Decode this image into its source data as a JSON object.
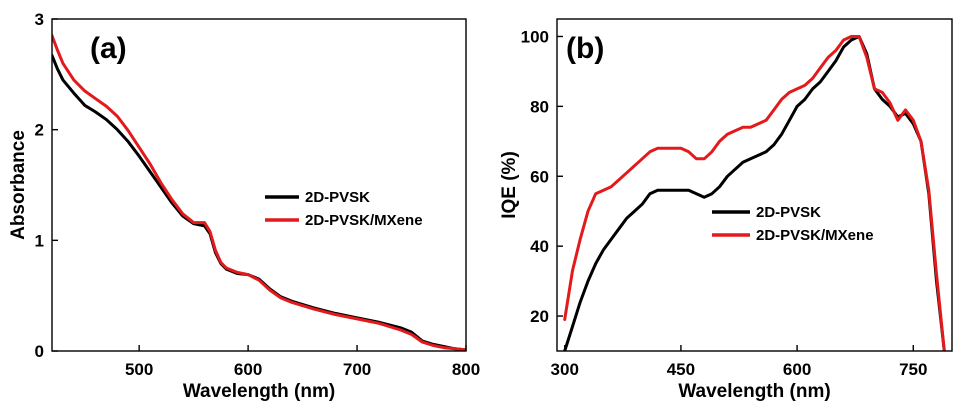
{
  "chart_data": [
    {
      "type": "line",
      "panel_label": "(a)",
      "xlabel": "Wavelength (nm)",
      "ylabel": "Absorbance",
      "xlim": [
        420,
        800
      ],
      "ylim": [
        0,
        3
      ],
      "xticks": [
        500,
        600,
        700,
        800
      ],
      "yticks": [
        0,
        1,
        2,
        3
      ],
      "legend_position": "center-right",
      "series": [
        {
          "name": "2D-PVSK",
          "color": "#000000",
          "x": [
            420,
            425,
            430,
            440,
            450,
            460,
            470,
            480,
            490,
            500,
            510,
            520,
            530,
            540,
            550,
            560,
            565,
            570,
            575,
            580,
            590,
            600,
            610,
            620,
            630,
            640,
            660,
            680,
            700,
            720,
            740,
            750,
            760,
            770,
            780,
            790,
            800
          ],
          "y": [
            2.67,
            2.55,
            2.45,
            2.33,
            2.22,
            2.16,
            2.09,
            2.0,
            1.89,
            1.76,
            1.62,
            1.48,
            1.34,
            1.22,
            1.15,
            1.13,
            1.06,
            0.89,
            0.79,
            0.74,
            0.7,
            0.69,
            0.65,
            0.56,
            0.49,
            0.45,
            0.39,
            0.34,
            0.3,
            0.26,
            0.21,
            0.17,
            0.09,
            0.06,
            0.04,
            0.02,
            0.01
          ]
        },
        {
          "name": "2D-PVSK/MXene",
          "color": "#e31a1c",
          "x": [
            420,
            425,
            430,
            440,
            450,
            460,
            470,
            480,
            490,
            500,
            510,
            520,
            530,
            540,
            550,
            560,
            565,
            570,
            575,
            580,
            590,
            600,
            610,
            620,
            630,
            640,
            660,
            680,
            700,
            720,
            740,
            750,
            760,
            770,
            780,
            790,
            800
          ],
          "y": [
            2.85,
            2.72,
            2.6,
            2.45,
            2.35,
            2.28,
            2.21,
            2.12,
            1.99,
            1.84,
            1.69,
            1.52,
            1.37,
            1.24,
            1.16,
            1.16,
            1.08,
            0.91,
            0.8,
            0.75,
            0.71,
            0.69,
            0.64,
            0.55,
            0.48,
            0.44,
            0.38,
            0.33,
            0.29,
            0.25,
            0.19,
            0.15,
            0.08,
            0.05,
            0.03,
            0.02,
            0.01
          ]
        }
      ]
    },
    {
      "type": "line",
      "panel_label": "(b)",
      "xlabel": "Wavelength (nm)",
      "ylabel": "IQE (%)",
      "xlim": [
        290,
        800
      ],
      "ylim": [
        10,
        105
      ],
      "xticks": [
        300,
        450,
        600,
        750
      ],
      "yticks": [
        20,
        40,
        60,
        80,
        100
      ],
      "legend_position": "center-right",
      "series": [
        {
          "name": "2D-PVSK",
          "color": "#000000",
          "x": [
            300,
            310,
            320,
            330,
            340,
            350,
            360,
            370,
            380,
            390,
            400,
            410,
            420,
            430,
            440,
            450,
            460,
            470,
            480,
            490,
            500,
            510,
            520,
            530,
            540,
            550,
            560,
            570,
            580,
            590,
            600,
            610,
            620,
            630,
            640,
            650,
            660,
            670,
            680,
            690,
            700,
            710,
            720,
            730,
            740,
            750,
            760,
            770,
            780,
            790
          ],
          "y": [
            10,
            17,
            24,
            30,
            35,
            39,
            42,
            45,
            48,
            50,
            52,
            55,
            56,
            56,
            56,
            56,
            56,
            55,
            54,
            55,
            57,
            60,
            62,
            64,
            65,
            66,
            67,
            69,
            72,
            76,
            80,
            82,
            85,
            87,
            90,
            93,
            97,
            99,
            100,
            95,
            85,
            82,
            80,
            77,
            78,
            75,
            70,
            55,
            30,
            10
          ]
        },
        {
          "name": "2D-PVSK/MXene",
          "color": "#e31a1c",
          "x": [
            300,
            310,
            320,
            330,
            340,
            350,
            360,
            370,
            380,
            390,
            400,
            410,
            420,
            430,
            440,
            450,
            460,
            470,
            480,
            490,
            500,
            510,
            520,
            530,
            540,
            550,
            560,
            570,
            580,
            590,
            600,
            610,
            620,
            630,
            640,
            650,
            660,
            670,
            680,
            690,
            700,
            710,
            720,
            730,
            740,
            750,
            760,
            770,
            780,
            790
          ],
          "y": [
            19,
            33,
            42,
            50,
            55,
            56,
            57,
            59,
            61,
            63,
            65,
            67,
            68,
            68,
            68,
            68,
            67,
            65,
            65,
            67,
            70,
            72,
            73,
            74,
            74,
            75,
            76,
            79,
            82,
            84,
            85,
            86,
            88,
            91,
            94,
            96,
            99,
            100,
            100,
            94,
            85,
            84,
            81,
            76,
            79,
            76,
            70,
            56,
            32,
            10
          ]
        }
      ]
    }
  ]
}
